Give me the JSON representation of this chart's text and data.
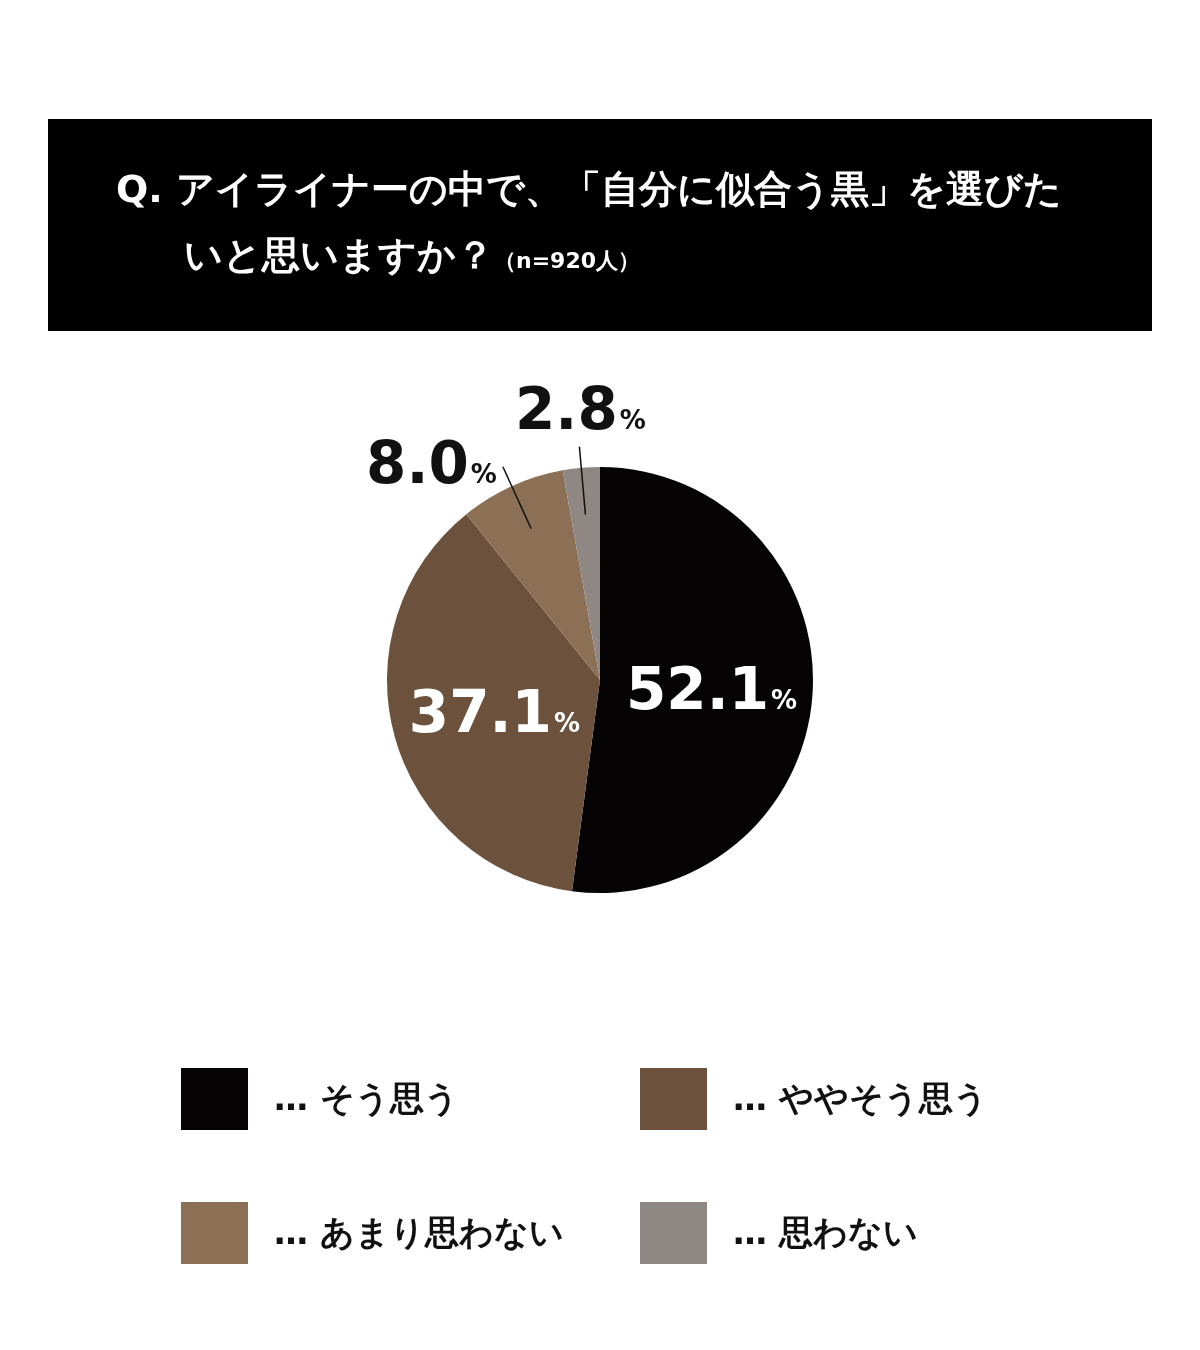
{
  "chart_data": {
    "type": "pie",
    "title": "Q. アイライナーの中で、「自分に似合う黒」を選びたいと思いますか？",
    "subtitle": "（n=920人）",
    "categories": [
      "… そう思う",
      "… ややそう思う",
      "… あまり思わない",
      "… 思わない"
    ],
    "values": [
      52.1,
      37.1,
      8.0,
      2.8
    ],
    "colors": [
      "#050304",
      "#6c523d",
      "#8b7055",
      "#8e8784"
    ],
    "value_labels": [
      "52.1%",
      "37.1%",
      "8.0%",
      "2.8%"
    ],
    "legend": "bottom"
  }
}
